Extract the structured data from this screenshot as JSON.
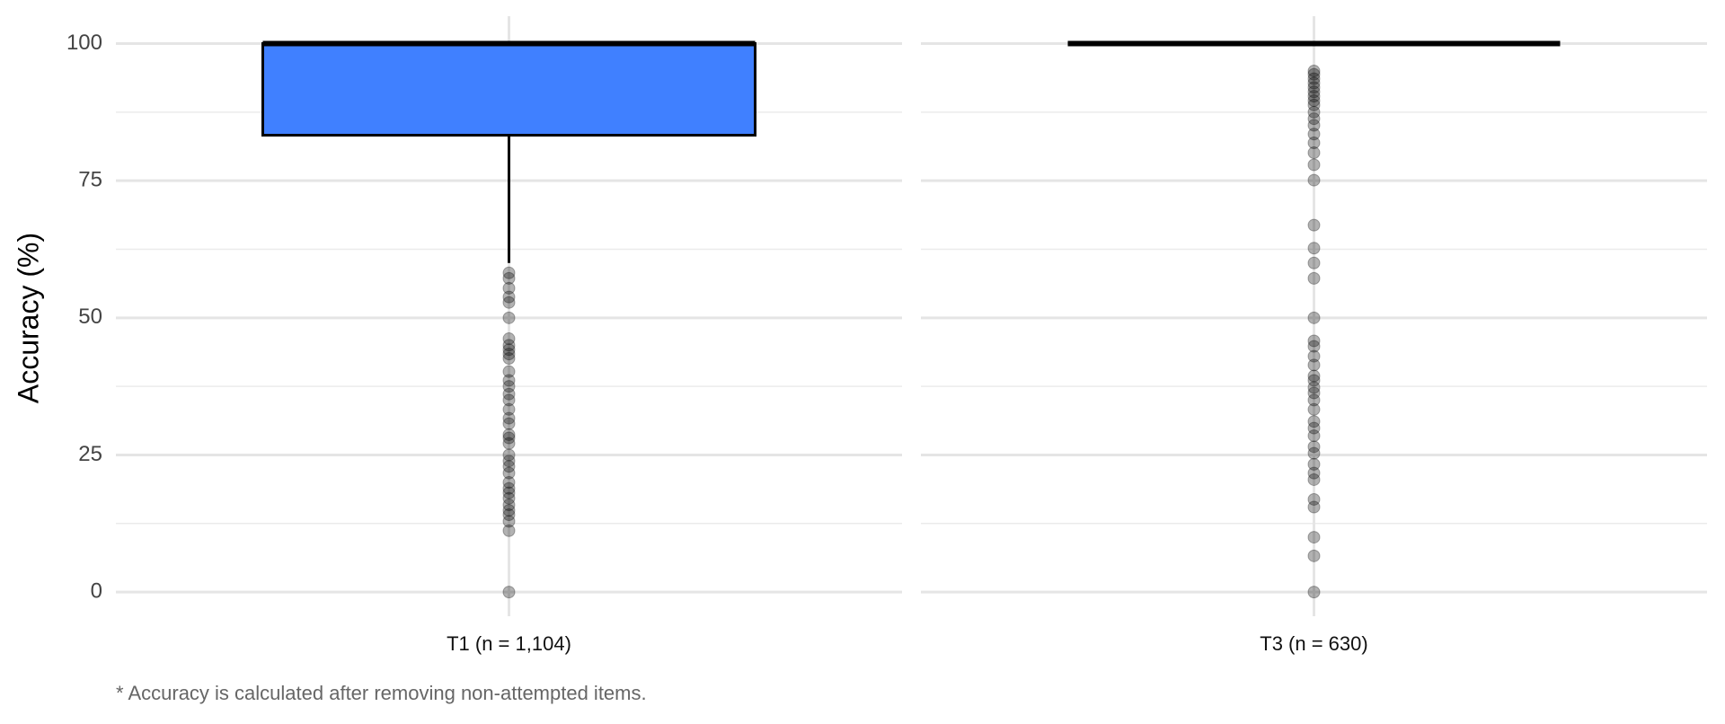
{
  "chart_data": {
    "type": "box",
    "y_label": "Accuracy (%)",
    "footnote": "* Accuracy is calculated after removing non-attempted items.",
    "categories": [
      "T1 (n = 1,104)",
      "T3 (n = 630)"
    ],
    "color": "#4080ff",
    "ylim": [
      -4.4,
      105
    ],
    "yticks": [
      0,
      25,
      50,
      75,
      100
    ],
    "minor_yticks": [
      12.5,
      37.5,
      62.5,
      87.5
    ],
    "grid": true,
    "boxes": [
      {
        "q1": 83.3,
        "median": 100,
        "q3": 100,
        "whisker_low": 60,
        "whisker_high": 100,
        "outliers": [
          58.2,
          57.2,
          55.4,
          53.8,
          52.8,
          50,
          46.2,
          45,
          44.2,
          43.4,
          42.6,
          40.2,
          38.6,
          37.5,
          36.1,
          35,
          33.3,
          31.7,
          30.7,
          28.7,
          28.1,
          27.1,
          25,
          23.9,
          22.9,
          21.7,
          20,
          18.9,
          18.1,
          17.1,
          15.9,
          14.9,
          14.1,
          12.9,
          11.2,
          0
        ]
      },
      {
        "q1": 100,
        "median": 100,
        "q3": 100,
        "whisker_low": 100,
        "whisker_high": 100,
        "outliers": [
          95,
          94.4,
          93.6,
          92.8,
          92,
          91.2,
          90.4,
          89.6,
          88.8,
          87.5,
          86.3,
          85.1,
          83.5,
          81.9,
          80.1,
          77.9,
          75.1,
          66.9,
          62.7,
          60,
          57.2,
          50,
          45.8,
          44.8,
          43,
          41.4,
          39.4,
          38.6,
          37.3,
          36.3,
          35,
          33.3,
          31.1,
          29.9,
          28.5,
          26.5,
          25.3,
          23.3,
          21.7,
          20.5,
          16.9,
          15.5,
          10,
          6.6,
          0
        ]
      }
    ]
  }
}
